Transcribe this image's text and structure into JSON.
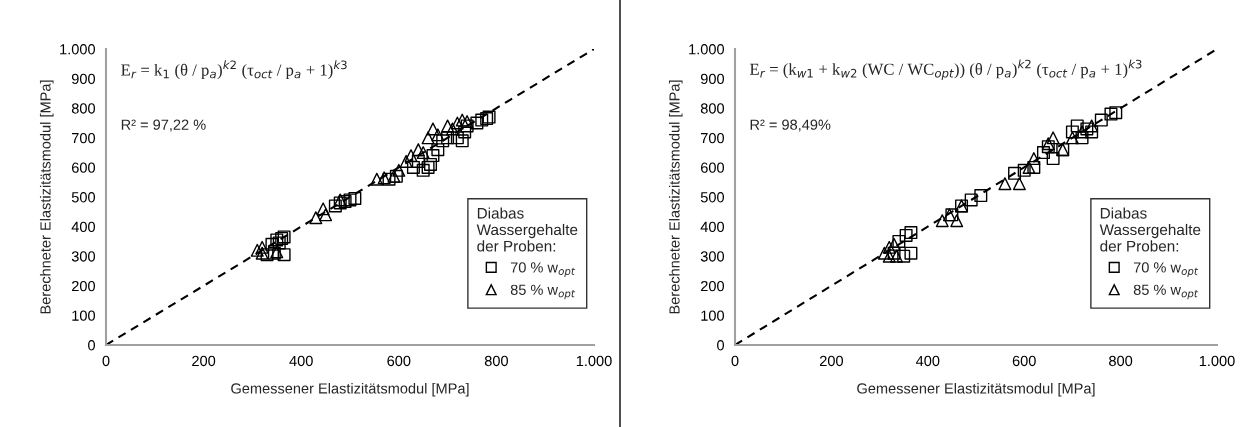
{
  "chart_data": [
    {
      "type": "scatter",
      "xlabel": "Gemessener Elastizitätsmodul [MPa]",
      "ylabel": "Berechneter Elastizitätsmodul [MPa]",
      "legend_title": "Diabas\nWassergehalte\nder Proben:",
      "legend": "lower right",
      "grid": false,
      "annotations": [
        "E$_{r}$ = k$_{1}$ (θ / p$_{a}$)$^{k2}$ (τ$_{oct}$ / p$_{a}$ + 1)$^{k3}$",
        "R² = 97,22 %"
      ],
      "xlim": [
        0,
        1000
      ],
      "ylim": [
        0,
        1000
      ],
      "xticks": [
        0,
        200,
        400,
        600,
        800,
        {
          "value": 1000,
          "label": "1.000"
        }
      ],
      "yticks": [
        0,
        100,
        200,
        300,
        400,
        500,
        600,
        700,
        800,
        900,
        {
          "value": 1000,
          "label": "1.000"
        }
      ],
      "series": [
        {
          "name": "70 % w$_{opt}$",
          "color": "#000000",
          "marker": "square",
          "x": [
            330,
            345,
            365,
            340,
            350,
            360,
            365,
            355,
            470,
            480,
            500,
            510,
            490,
            580,
            595,
            630,
            640,
            650,
            660,
            665,
            670,
            680,
            690,
            700,
            720,
            730,
            735,
            740,
            760,
            770,
            780,
            785
          ],
          "values": [
            305,
            310,
            305,
            340,
            355,
            360,
            365,
            345,
            470,
            480,
            490,
            495,
            485,
            560,
            570,
            600,
            620,
            590,
            600,
            610,
            640,
            660,
            690,
            700,
            700,
            690,
            720,
            740,
            750,
            760,
            765,
            770
          ]
        },
        {
          "name": "85 % w$_{opt}$",
          "color": "#000000",
          "marker": "triangle",
          "x": [
            310,
            320,
            320,
            350,
            430,
            450,
            445,
            480,
            555,
            570,
            590,
            600,
            615,
            625,
            640,
            650,
            660,
            670,
            680,
            700,
            710,
            720,
            730,
            740
          ],
          "values": [
            320,
            330,
            310,
            315,
            430,
            440,
            460,
            490,
            560,
            565,
            570,
            590,
            620,
            640,
            660,
            650,
            700,
            730,
            710,
            740,
            730,
            750,
            760,
            755
          ]
        },
        {
          "type": "line",
          "color": "#000000",
          "line_style": "dashed",
          "x": [
            0,
            1000
          ],
          "values": [
            0,
            1000
          ]
        }
      ]
    },
    {
      "type": "scatter",
      "xlabel": "Gemessener Elastizitätsmodul [MPa]",
      "ylabel": "Berechneter Elastizitätsmodul [MPa]",
      "legend_title": "Diabas\nWassergehalte\nder Proben:",
      "legend": "lower right",
      "grid": false,
      "annotations": [
        "E$_{r}$ = (k$_{w1}$ + k$_{w2}$ (WC / WC$_{opt}$)) (θ / p$_{a}$)$^{k2}$ (τ$_{oct}$ / p$_{a}$ + 1)$^{k3}$",
        "R² = 98,49%"
      ],
      "xlim": [
        0,
        1000
      ],
      "ylim": [
        0,
        1000
      ],
      "xticks": [
        0,
        200,
        400,
        600,
        800,
        {
          "value": 1000,
          "label": "1.000"
        }
      ],
      "yticks": [
        0,
        100,
        200,
        300,
        400,
        500,
        600,
        700,
        800,
        900,
        {
          "value": 1000,
          "label": "1.000"
        }
      ],
      "series": [
        {
          "name": "70 % w$_{opt}$",
          "color": "#000000",
          "marker": "square",
          "x": [
            330,
            350,
            365,
            340,
            355,
            365,
            450,
            470,
            490,
            510,
            580,
            600,
            620,
            640,
            650,
            660,
            680,
            700,
            710,
            720,
            730,
            740,
            760,
            780,
            790
          ],
          "values": [
            310,
            300,
            310,
            350,
            370,
            380,
            440,
            470,
            490,
            505,
            580,
            590,
            600,
            650,
            670,
            630,
            660,
            720,
            740,
            700,
            730,
            720,
            760,
            780,
            785
          ]
        },
        {
          "name": "85 % w$_{opt}$",
          "color": "#000000",
          "marker": "triangle",
          "x": [
            310,
            320,
            335,
            320,
            330,
            430,
            460,
            445,
            470,
            560,
            590,
            610,
            620,
            650,
            660,
            680,
            700,
            720,
            740
          ],
          "values": [
            310,
            300,
            300,
            330,
            340,
            420,
            420,
            440,
            470,
            545,
            545,
            600,
            630,
            680,
            700,
            660,
            700,
            720,
            740
          ]
        },
        {
          "type": "line",
          "color": "#000000",
          "line_style": "dashed",
          "x": [
            0,
            1000
          ],
          "values": [
            0,
            1000
          ]
        }
      ]
    }
  ]
}
